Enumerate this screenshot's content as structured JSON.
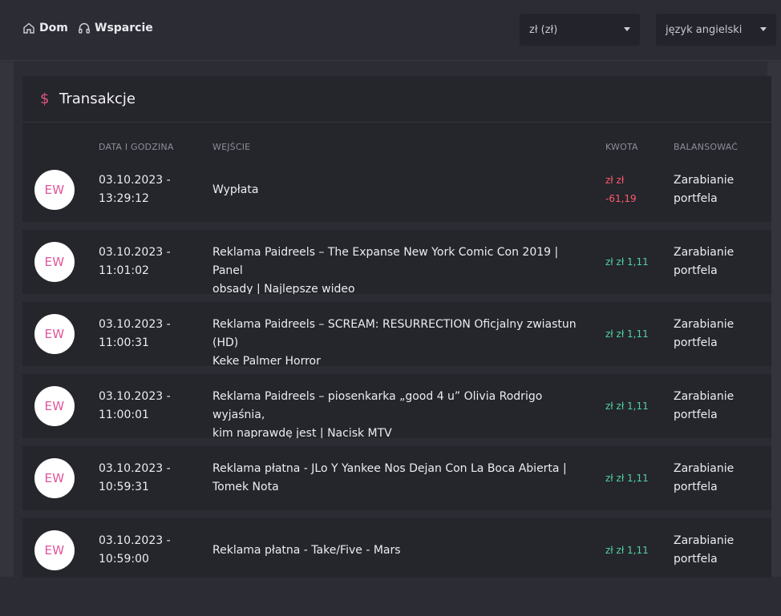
{
  "nav": {
    "home_label": "Dom",
    "support_label": "Wsparcie"
  },
  "selects": {
    "currency_value": "zł (zł)",
    "language_value": "język angielski"
  },
  "card": {
    "title": "Transakcje",
    "columns": {
      "date": "DATA I GODZINA",
      "entry": "WEJŚCIE",
      "amount": "KWOTA",
      "balance": "BALANSOWAĆ"
    }
  },
  "transactions": [
    {
      "avatar": "EW",
      "date": "03.10.2023 -",
      "time": "13:29:12",
      "desc_line1": "Wypłata",
      "desc_line2": "",
      "amount_line1": "zł zł",
      "amount_line2": "-61,19",
      "amount_type": "negative",
      "balance_line1": "Zarabianie",
      "balance_line2": "portfela"
    },
    {
      "avatar": "EW",
      "date": "03.10.2023 -",
      "time": "11:01:02",
      "desc_line1": "Reklama Paidreels – The Expanse New York Comic Con 2019 | Panel",
      "desc_line2": "obsady | Najlepsze wideo",
      "amount_line1": "zł zł 1,11",
      "amount_line2": "",
      "amount_type": "positive",
      "balance_line1": "Zarabianie",
      "balance_line2": "portfela"
    },
    {
      "avatar": "EW",
      "date": "03.10.2023 -",
      "time": "11:00:31",
      "desc_line1": "Reklama Paidreels – SCREAM: RESURRECTION Oficjalny zwiastun (HD)",
      "desc_line2": "Keke Palmer Horror",
      "amount_line1": "zł zł 1,11",
      "amount_line2": "",
      "amount_type": "positive",
      "balance_line1": "Zarabianie",
      "balance_line2": "portfela"
    },
    {
      "avatar": "EW",
      "date": "03.10.2023 -",
      "time": "11:00:01",
      "desc_line1": "Reklama Paidreels – piosenkarka „good 4 u” Olivia Rodrigo wyjaśnia,",
      "desc_line2": "kim naprawdę jest | Nacisk MTV",
      "amount_line1": "zł zł 1,11",
      "amount_line2": "",
      "amount_type": "positive",
      "balance_line1": "Zarabianie",
      "balance_line2": "portfela"
    },
    {
      "avatar": "EW",
      "date": "03.10.2023 -",
      "time": "10:59:31",
      "desc_line1": "Reklama płatna - JLo Y Yankee Nos Dejan Con La Boca Abierta |",
      "desc_line2": "Tomek Nota",
      "amount_line1": "zł zł 1,11",
      "amount_line2": "",
      "amount_type": "positive",
      "balance_line1": "Zarabianie",
      "balance_line2": "portfela"
    },
    {
      "avatar": "EW",
      "date": "03.10.2023 -",
      "time": "10:59:00",
      "desc_line1": "Reklama płatna - Take/Five - Mars",
      "desc_line2": "",
      "amount_line1": "zł zł 1,11",
      "amount_line2": "",
      "amount_type": "positive",
      "balance_line1": "Zarabianie",
      "balance_line2": "portfela"
    }
  ],
  "colors": {
    "positive": "#4fd39d",
    "negative": "#ff5b6a",
    "accent": "#e0567a"
  }
}
